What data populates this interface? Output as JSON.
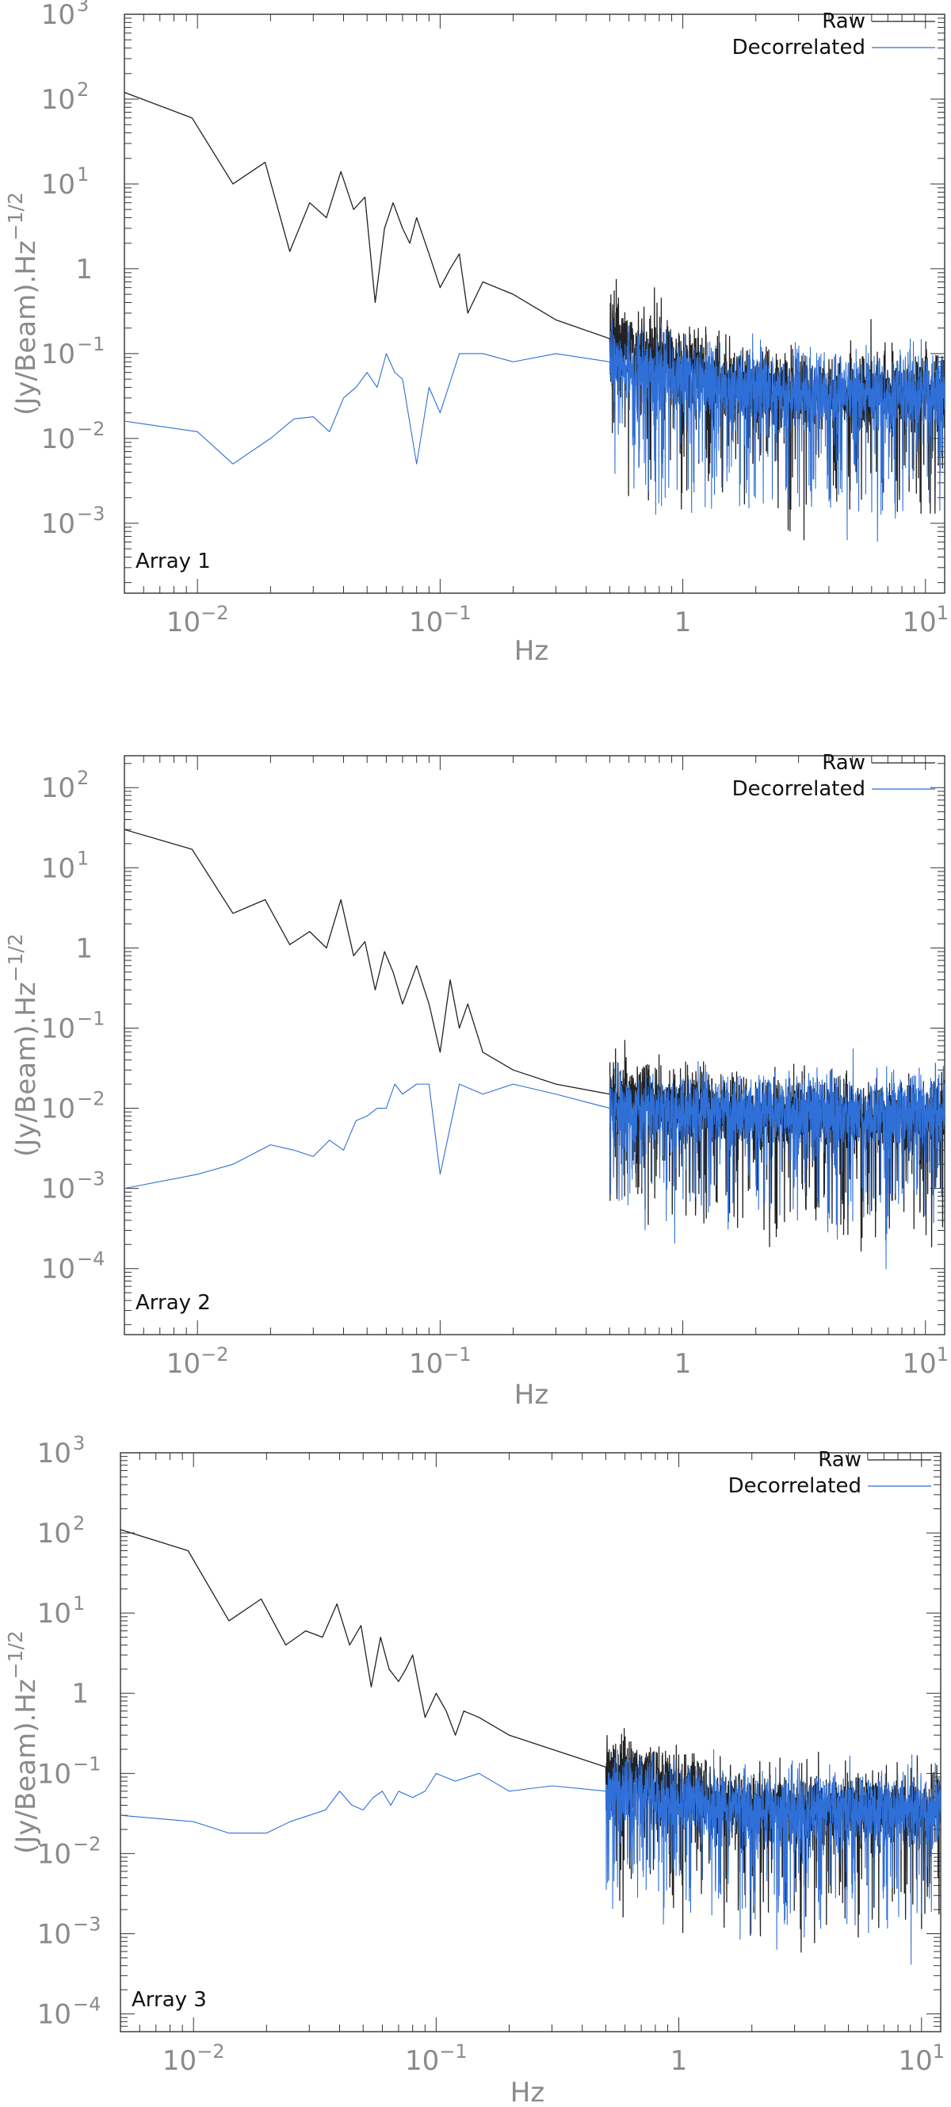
{
  "chart_data": [
    {
      "type": "line",
      "x_scale": "log",
      "y_scale": "log",
      "xlim": [
        0.005,
        12
      ],
      "ylim": [
        0.00015,
        1000
      ],
      "xlabel": "Hz",
      "ylabel": "(Jy/Beam).Hz^-1/2",
      "x_ticks": [
        {
          "base": "10",
          "exp": "−2"
        },
        {
          "base": "10",
          "exp": "−1"
        },
        {
          "base": "1",
          "exp": ""
        },
        {
          "base": "10",
          "exp": "1"
        }
      ],
      "y_ticks": [
        {
          "base": "10",
          "exp": "3"
        },
        {
          "base": "10",
          "exp": "2"
        },
        {
          "base": "10",
          "exp": "1"
        },
        {
          "base": "1",
          "exp": ""
        },
        {
          "base": "10",
          "exp": "−1"
        },
        {
          "base": "10",
          "exp": "−2"
        },
        {
          "base": "10",
          "exp": "−3"
        }
      ],
      "annotation": "Array 1",
      "legend_position": "top-right",
      "series": [
        {
          "name": "Raw",
          "color": "#222222",
          "x": [
            0.005,
            0.0095,
            0.014,
            0.019,
            0.024,
            0.029,
            0.034,
            0.039,
            0.044,
            0.049,
            0.054,
            0.059,
            0.064,
            0.07,
            0.075,
            0.08,
            0.09,
            0.1,
            0.11,
            0.12,
            0.13,
            0.15,
            0.2,
            0.3,
            0.5
          ],
          "values": [
            120,
            60,
            10,
            18,
            1.6,
            6,
            4,
            14,
            5,
            7,
            0.4,
            3,
            6,
            3,
            2,
            4,
            1.5,
            0.6,
            1,
            1.5,
            0.3,
            0.7,
            0.5,
            0.25,
            0.15
          ]
        },
        {
          "name": "Decorrelated",
          "color": "#2f6fd8",
          "x": [
            0.005,
            0.01,
            0.014,
            0.02,
            0.025,
            0.03,
            0.035,
            0.04,
            0.045,
            0.05,
            0.055,
            0.06,
            0.065,
            0.07,
            0.08,
            0.09,
            0.1,
            0.12,
            0.15,
            0.2,
            0.3,
            0.5
          ],
          "values": [
            0.016,
            0.012,
            0.005,
            0.01,
            0.017,
            0.018,
            0.012,
            0.03,
            0.04,
            0.06,
            0.04,
            0.1,
            0.06,
            0.05,
            0.005,
            0.04,
            0.02,
            0.1,
            0.1,
            0.08,
            0.1,
            0.08
          ]
        }
      ]
    },
    {
      "type": "line",
      "x_scale": "log",
      "y_scale": "log",
      "xlim": [
        0.005,
        12
      ],
      "ylim": [
        1.5e-05,
        250
      ],
      "xlabel": "Hz",
      "ylabel": "(Jy/Beam).Hz^-1/2",
      "x_ticks": [
        {
          "base": "10",
          "exp": "−2"
        },
        {
          "base": "10",
          "exp": "−1"
        },
        {
          "base": "1",
          "exp": ""
        },
        {
          "base": "10",
          "exp": "1"
        }
      ],
      "y_ticks": [
        {
          "base": "10",
          "exp": "2"
        },
        {
          "base": "10",
          "exp": "1"
        },
        {
          "base": "1",
          "exp": ""
        },
        {
          "base": "10",
          "exp": "−1"
        },
        {
          "base": "10",
          "exp": "−2"
        },
        {
          "base": "10",
          "exp": "−3"
        },
        {
          "base": "10",
          "exp": "−4"
        }
      ],
      "annotation": "Array 2",
      "legend_position": "top-right",
      "series": [
        {
          "name": "Raw",
          "color": "#222222",
          "x": [
            0.005,
            0.0095,
            0.014,
            0.019,
            0.024,
            0.029,
            0.034,
            0.039,
            0.044,
            0.049,
            0.054,
            0.059,
            0.064,
            0.07,
            0.08,
            0.09,
            0.1,
            0.11,
            0.12,
            0.13,
            0.15,
            0.2,
            0.3,
            0.5
          ],
          "values": [
            30,
            17,
            2.7,
            4,
            1.1,
            1.6,
            1,
            4,
            0.8,
            1.2,
            0.3,
            0.9,
            0.5,
            0.2,
            0.6,
            0.2,
            0.05,
            0.4,
            0.1,
            0.2,
            0.05,
            0.03,
            0.02,
            0.015
          ]
        },
        {
          "name": "Decorrelated",
          "color": "#2f6fd8",
          "x": [
            0.005,
            0.01,
            0.014,
            0.02,
            0.025,
            0.03,
            0.035,
            0.04,
            0.045,
            0.05,
            0.055,
            0.06,
            0.065,
            0.07,
            0.08,
            0.09,
            0.1,
            0.12,
            0.15,
            0.2,
            0.3,
            0.5
          ],
          "values": [
            0.001,
            0.0015,
            0.002,
            0.0035,
            0.003,
            0.0025,
            0.004,
            0.003,
            0.007,
            0.008,
            0.01,
            0.01,
            0.02,
            0.015,
            0.02,
            0.02,
            0.0015,
            0.02,
            0.015,
            0.02,
            0.015,
            0.01
          ]
        }
      ]
    },
    {
      "type": "line",
      "x_scale": "log",
      "y_scale": "log",
      "xlim": [
        0.005,
        12
      ],
      "ylim": [
        6e-05,
        1000
      ],
      "xlabel": "Hz",
      "ylabel": "(Jy/Beam).Hz^-1/2",
      "x_ticks": [
        {
          "base": "10",
          "exp": "−2"
        },
        {
          "base": "10",
          "exp": "−1"
        },
        {
          "base": "1",
          "exp": ""
        },
        {
          "base": "10",
          "exp": "1"
        }
      ],
      "y_ticks": [
        {
          "base": "10",
          "exp": "3"
        },
        {
          "base": "10",
          "exp": "2"
        },
        {
          "base": "10",
          "exp": "1"
        },
        {
          "base": "1",
          "exp": ""
        },
        {
          "base": "10",
          "exp": "−1"
        },
        {
          "base": "10",
          "exp": "−2"
        },
        {
          "base": "10",
          "exp": "−3"
        },
        {
          "base": "10",
          "exp": "−4"
        }
      ],
      "annotation": "Array 3",
      "legend_position": "top-right",
      "series": [
        {
          "name": "Raw",
          "color": "#222222",
          "x": [
            0.005,
            0.0095,
            0.014,
            0.019,
            0.024,
            0.029,
            0.034,
            0.039,
            0.044,
            0.049,
            0.054,
            0.059,
            0.064,
            0.07,
            0.075,
            0.08,
            0.09,
            0.1,
            0.11,
            0.12,
            0.13,
            0.15,
            0.2,
            0.3,
            0.5
          ],
          "values": [
            110,
            60,
            8,
            15,
            4,
            6,
            5,
            13,
            4,
            7,
            1.2,
            5,
            2,
            1.4,
            2,
            3,
            0.5,
            1,
            0.6,
            0.3,
            0.6,
            0.5,
            0.3,
            0.2,
            0.12
          ]
        },
        {
          "name": "Decorrelated",
          "color": "#2f6fd8",
          "x": [
            0.005,
            0.01,
            0.014,
            0.02,
            0.025,
            0.03,
            0.035,
            0.04,
            0.045,
            0.05,
            0.055,
            0.06,
            0.065,
            0.07,
            0.08,
            0.09,
            0.1,
            0.12,
            0.15,
            0.2,
            0.3,
            0.5
          ],
          "values": [
            0.03,
            0.025,
            0.018,
            0.018,
            0.025,
            0.03,
            0.035,
            0.06,
            0.04,
            0.035,
            0.05,
            0.06,
            0.04,
            0.06,
            0.05,
            0.06,
            0.1,
            0.08,
            0.1,
            0.06,
            0.07,
            0.06
          ]
        }
      ]
    }
  ]
}
